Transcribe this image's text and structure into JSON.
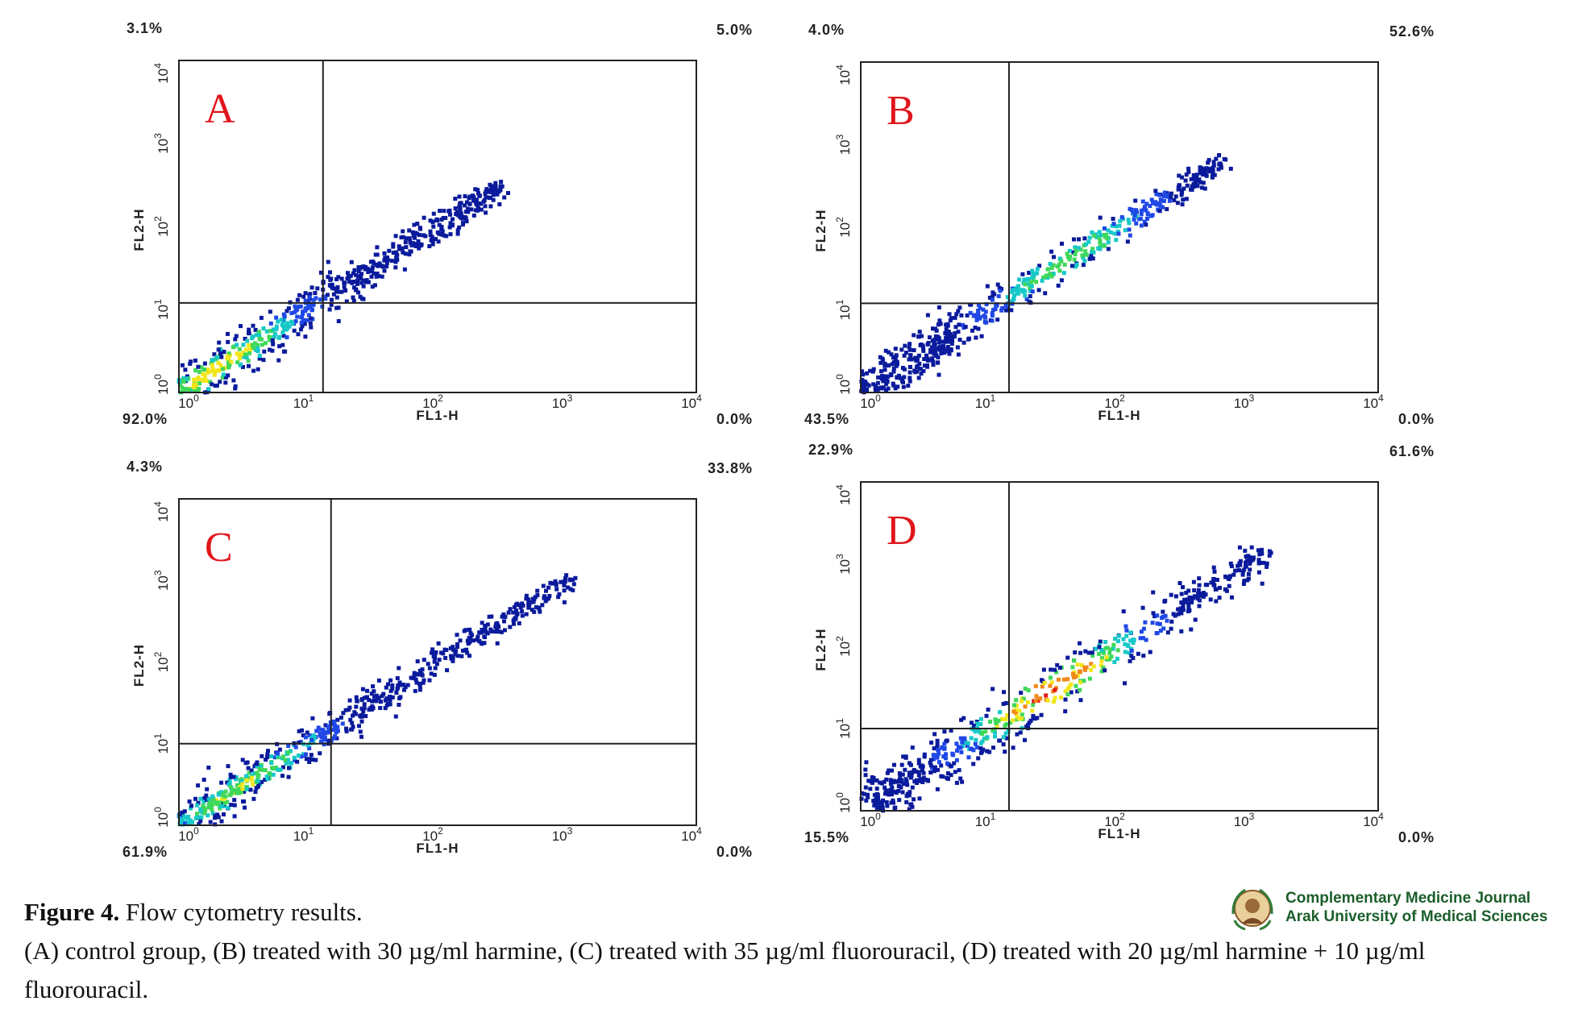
{
  "figure": {
    "label": "Figure 4.",
    "title": "Flow cytometry results.",
    "description": "(A) control group, (B) treated with 30 µg/ml harmine, (C) treated with 35 µg/ml fluorouracil, (D) treated with 20 µg/ml harmine + 10 µg/ml fluorouracil."
  },
  "journal": {
    "name": "Complementary Medicine Journal",
    "institution": "Arak University of Medical Sciences"
  },
  "colors": {
    "panel_letter": "#e0151b",
    "density_scale": [
      "#0a1a9c",
      "#1f48e6",
      "#16c8c8",
      "#3fd858",
      "#f2e61a",
      "#f08a1a",
      "#e01a14"
    ]
  },
  "chart_data": [
    {
      "type": "scatter",
      "panel": "A",
      "xlabel": "FL1-H",
      "ylabel": "FL2-H",
      "x_scale": "log",
      "y_scale": "log",
      "xlim": [
        1,
        10000
      ],
      "ylim": [
        1,
        10000
      ],
      "x_ticks": [
        {
          "base": "10",
          "exp": "0"
        },
        {
          "base": "10",
          "exp": "1"
        },
        {
          "base": "10",
          "exp": "2"
        },
        {
          "base": "10",
          "exp": "3"
        },
        {
          "base": "10",
          "exp": "4"
        }
      ],
      "y_ticks": [
        {
          "base": "10",
          "exp": "0"
        },
        {
          "base": "10",
          "exp": "1"
        },
        {
          "base": "10",
          "exp": "2"
        },
        {
          "base": "10",
          "exp": "3"
        },
        {
          "base": "10",
          "exp": "4"
        }
      ],
      "quadrant_gate": {
        "x": 13,
        "y": 12
      },
      "quadrants": {
        "upper_left": "3.1%",
        "upper_right": "5.0%",
        "lower_left": "92.0%",
        "lower_right": "0.0%"
      },
      "population": {
        "start": 1.0,
        "end": 320,
        "peak_density": 0.75,
        "density_center": 2,
        "spread": 0.13
      }
    },
    {
      "type": "scatter",
      "panel": "B",
      "xlabel": "FL1-H",
      "ylabel": "FL2-H",
      "x_scale": "log",
      "y_scale": "log",
      "xlim": [
        1,
        10000
      ],
      "ylim": [
        1,
        10000
      ],
      "x_ticks": [
        {
          "base": "10",
          "exp": "0"
        },
        {
          "base": "10",
          "exp": "1"
        },
        {
          "base": "10",
          "exp": "2"
        },
        {
          "base": "10",
          "exp": "3"
        },
        {
          "base": "10",
          "exp": "4"
        }
      ],
      "y_ticks": [
        {
          "base": "10",
          "exp": "0"
        },
        {
          "base": "10",
          "exp": "1"
        },
        {
          "base": "10",
          "exp": "2"
        },
        {
          "base": "10",
          "exp": "3"
        },
        {
          "base": "10",
          "exp": "4"
        }
      ],
      "quadrant_gate": {
        "x": 14,
        "y": 12
      },
      "quadrants": {
        "upper_left": "4.0%",
        "upper_right": "52.6%",
        "lower_left": "43.5%",
        "lower_right": "0.0%"
      },
      "population": {
        "start": 1.0,
        "end": 650,
        "peak_density": 0.6,
        "density_center": 40,
        "spread": 0.12
      }
    },
    {
      "type": "scatter",
      "panel": "C",
      "xlabel": "FL1-H",
      "ylabel": "FL2-H",
      "x_scale": "log",
      "y_scale": "log",
      "xlim": [
        1,
        10000
      ],
      "ylim": [
        1,
        10000
      ],
      "x_ticks": [
        {
          "base": "10",
          "exp": "0"
        },
        {
          "base": "10",
          "exp": "1"
        },
        {
          "base": "10",
          "exp": "2"
        },
        {
          "base": "10",
          "exp": "3"
        },
        {
          "base": "10",
          "exp": "4"
        }
      ],
      "y_ticks": [
        {
          "base": "10",
          "exp": "0"
        },
        {
          "base": "10",
          "exp": "1"
        },
        {
          "base": "10",
          "exp": "2"
        },
        {
          "base": "10",
          "exp": "3"
        },
        {
          "base": "10",
          "exp": "4"
        }
      ],
      "quadrant_gate": {
        "x": 15,
        "y": 10
      },
      "quadrants": {
        "upper_left": "4.3%",
        "upper_right": "33.8%",
        "lower_left": "61.9%",
        "lower_right": "0.0%"
      },
      "population": {
        "start": 1.0,
        "end": 1100,
        "peak_density": 0.65,
        "density_center": 3,
        "spread": 0.11
      }
    },
    {
      "type": "scatter",
      "panel": "D",
      "xlabel": "FL1-H",
      "ylabel": "FL2-H",
      "x_scale": "log",
      "y_scale": "log",
      "xlim": [
        1,
        10000
      ],
      "ylim": [
        1,
        10000
      ],
      "x_ticks": [
        {
          "base": "10",
          "exp": "0"
        },
        {
          "base": "10",
          "exp": "1"
        },
        {
          "base": "10",
          "exp": "2"
        },
        {
          "base": "10",
          "exp": "3"
        },
        {
          "base": "10",
          "exp": "4"
        }
      ],
      "y_ticks": [
        {
          "base": "10",
          "exp": "0"
        },
        {
          "base": "10",
          "exp": "1"
        },
        {
          "base": "10",
          "exp": "2"
        },
        {
          "base": "10",
          "exp": "3"
        },
        {
          "base": "10",
          "exp": "4"
        }
      ],
      "quadrant_gate": {
        "x": 14,
        "y": 10
      },
      "quadrants": {
        "upper_left": "22.9%",
        "upper_right": "61.6%",
        "lower_left": "15.5%",
        "lower_right": "0.0%"
      },
      "population": {
        "start": 1.2,
        "end": 1500,
        "peak_density": 1.0,
        "density_center": 30,
        "spread": 0.16
      }
    }
  ]
}
